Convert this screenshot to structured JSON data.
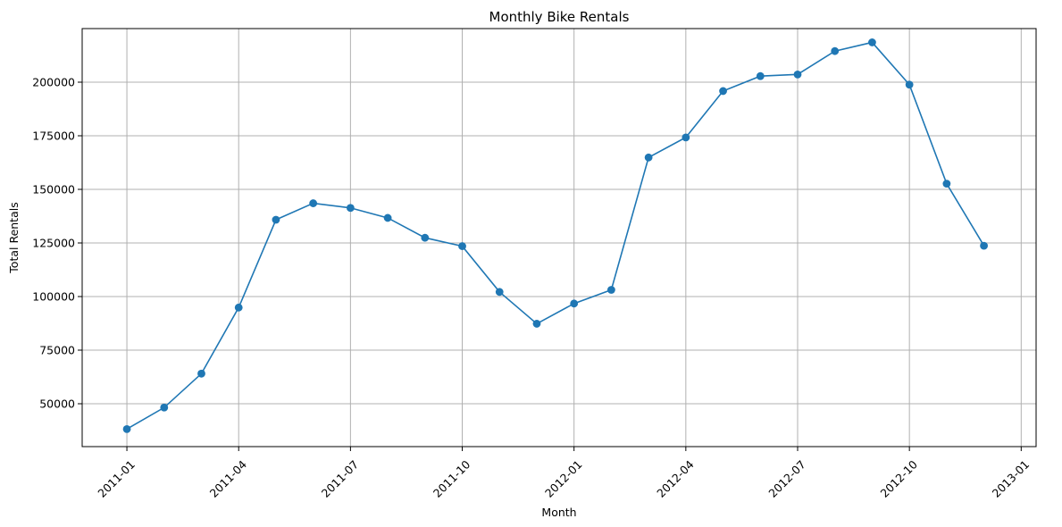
{
  "chart_data": {
    "type": "line",
    "title": "Monthly Bike Rentals",
    "xlabel": "Month",
    "ylabel": "Total Rentals",
    "grid": true,
    "marker": "circle",
    "series": [
      {
        "name": "Total Rentals",
        "color": "#1f77b4",
        "x": [
          0,
          1,
          2,
          3,
          4,
          5,
          6,
          7,
          8,
          9,
          10,
          11,
          12,
          13,
          14,
          15,
          16,
          17,
          18,
          19,
          20,
          21,
          22,
          23
        ],
        "values": [
          38189,
          48215,
          64045,
          94870,
          135821,
          143512,
          141341,
          136691,
          127418,
          123511,
          102167,
          87323,
          96744,
          103137,
          164875,
          174224,
          195865,
          202830,
          203607,
          214503,
          218573,
          198841,
          152664,
          123713
        ]
      }
    ],
    "x_axis": {
      "range": [
        -1.2,
        24.4
      ],
      "tick_positions": [
        0,
        3,
        6,
        9,
        12,
        15,
        18,
        21,
        24
      ],
      "tick_labels": [
        "2011-01",
        "2011-04",
        "2011-07",
        "2011-10",
        "2012-01",
        "2012-04",
        "2012-07",
        "2012-10",
        "2013-01"
      ]
    },
    "y_axis": {
      "range": [
        30000,
        225000
      ],
      "tick_values": [
        50000,
        75000,
        100000,
        125000,
        150000,
        175000,
        200000
      ],
      "tick_labels": [
        "50000",
        "75000",
        "100000",
        "125000",
        "150000",
        "175000",
        "200000"
      ]
    }
  }
}
